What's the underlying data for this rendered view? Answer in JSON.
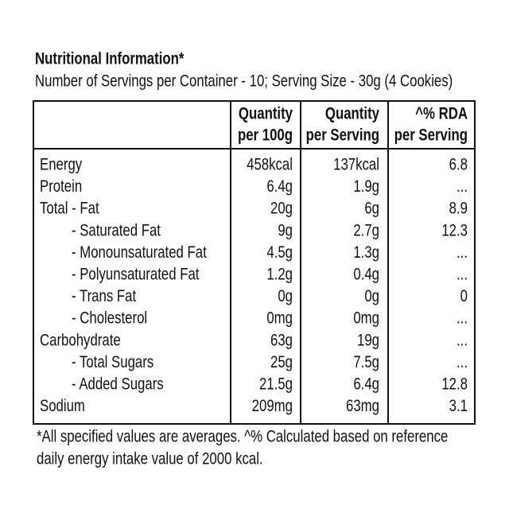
{
  "title": "Nutritional Information*",
  "subtitle": "Number of Servings per Container - 10; Serving Size - 30g  (4 Cookies)",
  "table": {
    "header": [
      [
        "Quantity",
        "per 100g"
      ],
      [
        "Quantity",
        "per Serving"
      ],
      [
        "^% RDA",
        "per Serving"
      ]
    ],
    "rows": [
      [
        "Energy",
        "458kcal",
        "137kcal",
        "6.8"
      ],
      [
        "Protein",
        "6.4g",
        "1.9g",
        "..."
      ],
      [
        "Total - Fat",
        "20g",
        "6g",
        "8.9"
      ],
      [
        "- Saturated Fat",
        "9g",
        "2.7g",
        "12.3"
      ],
      [
        "- Monounsaturated Fat",
        "4.5g",
        "1.3g",
        "..."
      ],
      [
        "- Polyunsaturated Fat",
        "1.2g",
        "0.4g",
        "..."
      ],
      [
        "- Trans Fat",
        "0g",
        "0g",
        "0"
      ],
      [
        "- Cholesterol",
        "0mg",
        "0mg",
        "..."
      ],
      [
        "Carbohydrate",
        "63g",
        "19g",
        "..."
      ],
      [
        "- Total Sugars",
        "25g",
        "7.5g",
        "..."
      ],
      [
        "- Added Sugars",
        "21.5g",
        "6.4g",
        "12.8"
      ],
      [
        "Sodium",
        "209mg",
        "63mg",
        "3.1"
      ]
    ]
  },
  "footnote": [
    "*All specified values are averages. ^% Calculated based on reference",
    "daily energy intake value of 2000 kcal."
  ]
}
